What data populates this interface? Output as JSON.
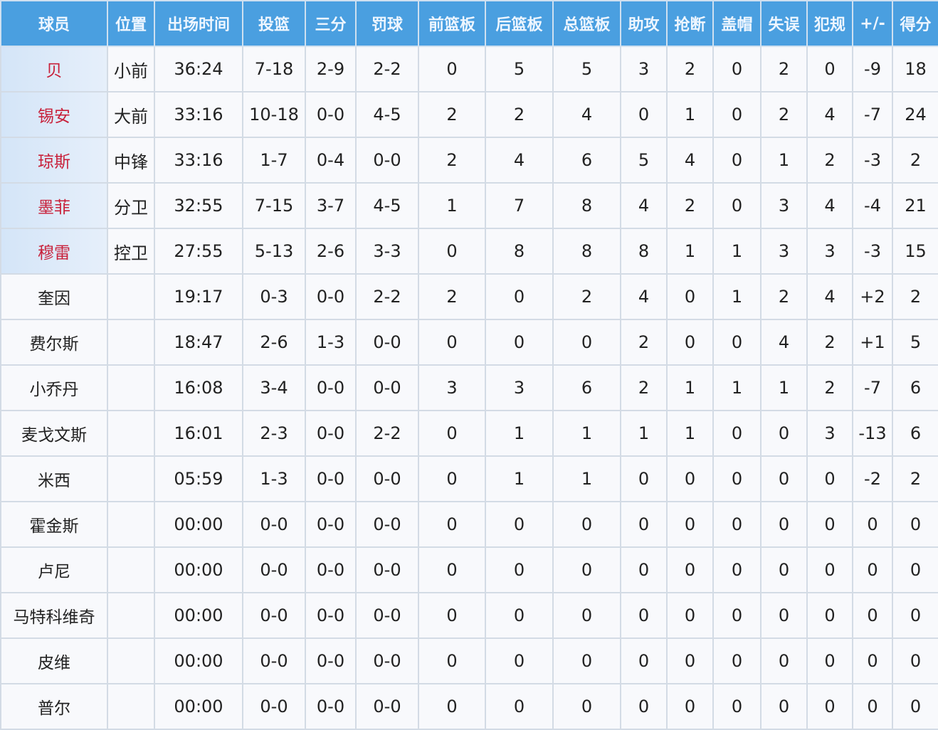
{
  "headers": [
    "球员",
    "位置",
    "出场时间",
    "投篮",
    "三分",
    "罚球",
    "前篮板",
    "后篮板",
    "总篮板",
    "助攻",
    "抢断",
    "盖帽",
    "失误",
    "犯规",
    "+/-",
    "得分"
  ],
  "colors": {
    "header": "#4a9fe0",
    "starter_name": "#c8203a",
    "starter_bg": "#d4e5f8"
  },
  "rows": [
    {
      "starter": true,
      "cells": [
        "贝",
        "小前",
        "36:24",
        "7-18",
        "2-9",
        "2-2",
        "0",
        "5",
        "5",
        "3",
        "2",
        "0",
        "2",
        "0",
        "-9",
        "18"
      ]
    },
    {
      "starter": true,
      "cells": [
        "锡安",
        "大前",
        "33:16",
        "10-18",
        "0-0",
        "4-5",
        "2",
        "2",
        "4",
        "0",
        "1",
        "0",
        "2",
        "4",
        "-7",
        "24"
      ]
    },
    {
      "starter": true,
      "cells": [
        "琼斯",
        "中锋",
        "33:16",
        "1-7",
        "0-4",
        "0-0",
        "2",
        "4",
        "6",
        "5",
        "4",
        "0",
        "1",
        "2",
        "-3",
        "2"
      ]
    },
    {
      "starter": true,
      "cells": [
        "墨菲",
        "分卫",
        "32:55",
        "7-15",
        "3-7",
        "4-5",
        "1",
        "7",
        "8",
        "4",
        "2",
        "0",
        "3",
        "4",
        "-4",
        "21"
      ]
    },
    {
      "starter": true,
      "cells": [
        "穆雷",
        "控卫",
        "27:55",
        "5-13",
        "2-6",
        "3-3",
        "0",
        "8",
        "8",
        "8",
        "1",
        "1",
        "3",
        "3",
        "-3",
        "15"
      ]
    },
    {
      "starter": false,
      "cells": [
        "奎因",
        "",
        "19:17",
        "0-3",
        "0-0",
        "2-2",
        "2",
        "0",
        "2",
        "4",
        "0",
        "1",
        "2",
        "4",
        "+2",
        "2"
      ]
    },
    {
      "starter": false,
      "cells": [
        "费尔斯",
        "",
        "18:47",
        "2-6",
        "1-3",
        "0-0",
        "0",
        "0",
        "0",
        "2",
        "0",
        "0",
        "4",
        "2",
        "+1",
        "5"
      ]
    },
    {
      "starter": false,
      "cells": [
        "小乔丹",
        "",
        "16:08",
        "3-4",
        "0-0",
        "0-0",
        "3",
        "3",
        "6",
        "2",
        "1",
        "1",
        "1",
        "2",
        "-7",
        "6"
      ]
    },
    {
      "starter": false,
      "cells": [
        "麦戈文斯",
        "",
        "16:01",
        "2-3",
        "0-0",
        "2-2",
        "0",
        "1",
        "1",
        "1",
        "1",
        "0",
        "0",
        "3",
        "-13",
        "6"
      ]
    },
    {
      "starter": false,
      "cells": [
        "米西",
        "",
        "05:59",
        "1-3",
        "0-0",
        "0-0",
        "0",
        "1",
        "1",
        "0",
        "0",
        "0",
        "0",
        "0",
        "-2",
        "2"
      ]
    },
    {
      "starter": false,
      "cells": [
        "霍金斯",
        "",
        "00:00",
        "0-0",
        "0-0",
        "0-0",
        "0",
        "0",
        "0",
        "0",
        "0",
        "0",
        "0",
        "0",
        "0",
        "0"
      ]
    },
    {
      "starter": false,
      "cells": [
        "卢尼",
        "",
        "00:00",
        "0-0",
        "0-0",
        "0-0",
        "0",
        "0",
        "0",
        "0",
        "0",
        "0",
        "0",
        "0",
        "0",
        "0"
      ]
    },
    {
      "starter": false,
      "cells": [
        "马特科维奇",
        "",
        "00:00",
        "0-0",
        "0-0",
        "0-0",
        "0",
        "0",
        "0",
        "0",
        "0",
        "0",
        "0",
        "0",
        "0",
        "0"
      ]
    },
    {
      "starter": false,
      "cells": [
        "皮维",
        "",
        "00:00",
        "0-0",
        "0-0",
        "0-0",
        "0",
        "0",
        "0",
        "0",
        "0",
        "0",
        "0",
        "0",
        "0",
        "0"
      ]
    },
    {
      "starter": false,
      "cells": [
        "普尔",
        "",
        "00:00",
        "0-0",
        "0-0",
        "0-0",
        "0",
        "0",
        "0",
        "0",
        "0",
        "0",
        "0",
        "0",
        "0",
        "0"
      ]
    }
  ]
}
